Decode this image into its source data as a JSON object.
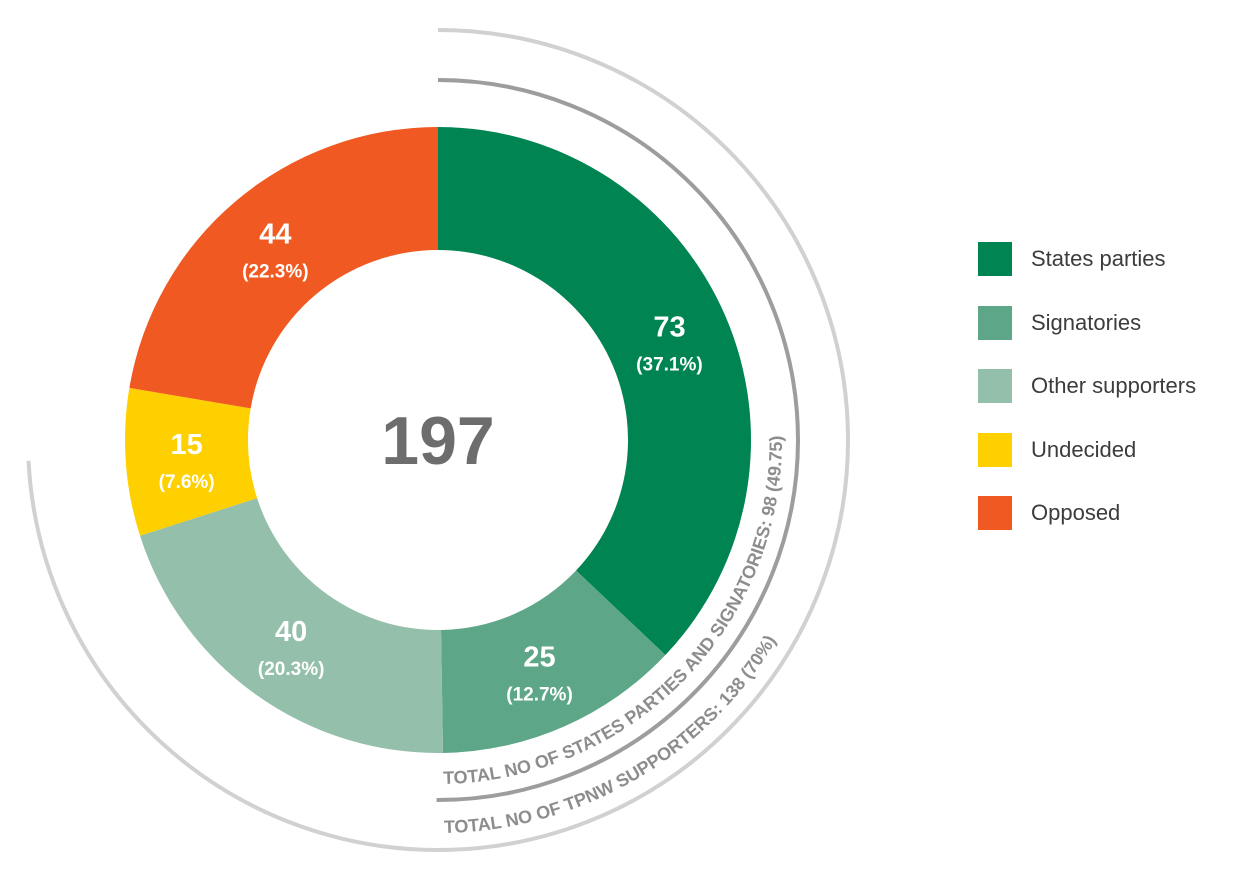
{
  "chart_data": {
    "type": "pie",
    "variant": "donut",
    "center_total": "197",
    "categories": [
      "States parties",
      "Signatories",
      "Other supporters",
      "Undecided",
      "Opposed"
    ],
    "values": [
      73,
      25,
      40,
      15,
      44
    ],
    "colors": [
      "#008452",
      "#5ea688",
      "#94bfaa",
      "#fed000",
      "#f05a22"
    ],
    "value_labels": [
      "73",
      "25",
      "40",
      "15",
      "44"
    ],
    "percent_labels": [
      "(37.1%)",
      "(12.7%)",
      "(20.3%)",
      "(7.6%)",
      "(22.3%)"
    ],
    "start_angle": "12 o'clock, clockwise",
    "legend_position": "right",
    "arcs": [
      {
        "label": "TOTAL NO OF STATES PARTIES AND SIGNATORIES: 98 (49.75)",
        "covers_categories": [
          "States parties",
          "Signatories"
        ],
        "value": 98
      },
      {
        "label": "TOTAL NO OF TPNW SUPPORTERS: 138 (70%)",
        "covers_categories": [
          "States parties",
          "Signatories",
          "Other supporters"
        ],
        "value": 138
      }
    ]
  },
  "colors": {
    "arc_inner": "#9d9d9e",
    "arc_outer": "#d1d1d2",
    "arc_text": "#8d8d8e",
    "center_text": "#6d6d6e",
    "label_text": "#ffffff"
  }
}
